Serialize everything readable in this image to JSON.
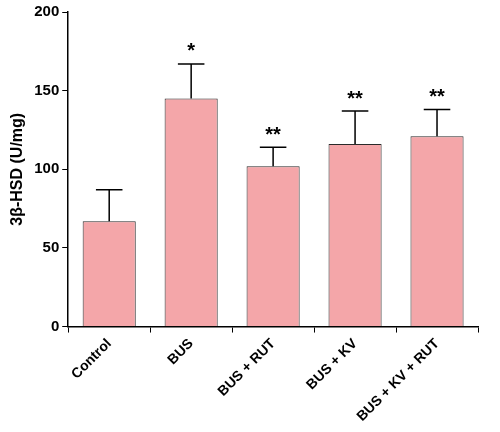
{
  "chart_data": {
    "type": "bar",
    "y_label": "3β-HSD (U/mg)",
    "categories": [
      "Control",
      "BUS",
      "BUS + RUT",
      "BUS + KV",
      "BUS + KV + RUT"
    ],
    "values": [
      67,
      145,
      102,
      116,
      121
    ],
    "errors": [
      20,
      22,
      12,
      21,
      17
    ],
    "annotations": [
      {
        "category": "BUS",
        "text": "*"
      },
      {
        "category": "BUS + RUT",
        "text": "**"
      },
      {
        "category": "BUS + KV",
        "text": "**"
      },
      {
        "category": "BUS + KV + RUT",
        "text": "**"
      }
    ],
    "color": "#f4a6a9",
    "ylim": [
      0,
      200
    ],
    "yticks": [
      0,
      50,
      100,
      150,
      200
    ],
    "grid": false
  }
}
